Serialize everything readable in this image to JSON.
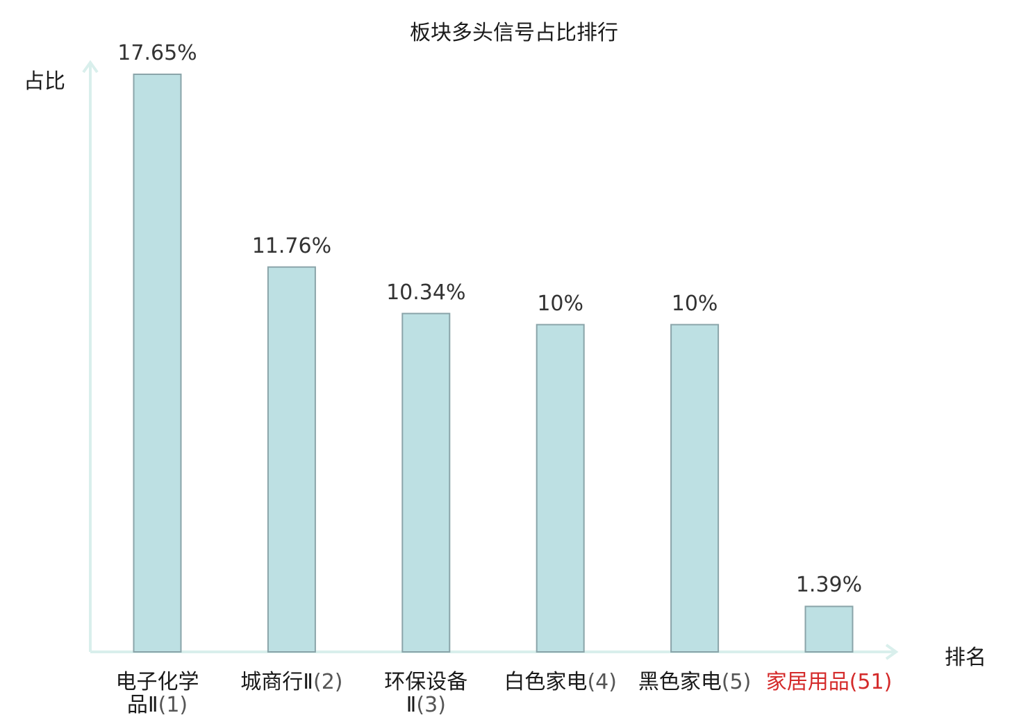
{
  "chart_data": {
    "type": "bar",
    "title": "板块多头信号占比排行",
    "ylabel": "占比",
    "xlabel": "排名",
    "categories": [
      {
        "name": "电子化学品Ⅱ",
        "rank": "(1)",
        "highlight": false
      },
      {
        "name": "城商行Ⅱ",
        "rank": "(2)",
        "highlight": false
      },
      {
        "name": "环保设备Ⅱ",
        "rank": "(3)",
        "highlight": false
      },
      {
        "name": "白色家电",
        "rank": "(4)",
        "highlight": false
      },
      {
        "name": "黑色家电",
        "rank": "(5)",
        "highlight": false
      },
      {
        "name": "家居用品",
        "rank": "(51)",
        "highlight": true
      }
    ],
    "values": [
      17.65,
      11.76,
      10.34,
      10,
      10,
      1.39
    ],
    "value_labels": [
      "17.65%",
      "11.76%",
      "10.34%",
      "10%",
      "10%",
      "1.39%"
    ],
    "ylim": [
      0,
      17.65
    ],
    "grid": false,
    "colors": {
      "bar_fill": "#bde0e3",
      "bar_stroke": "#8aa4a9",
      "axis": "#d9efec",
      "highlight_label": "#d42a2a"
    }
  }
}
